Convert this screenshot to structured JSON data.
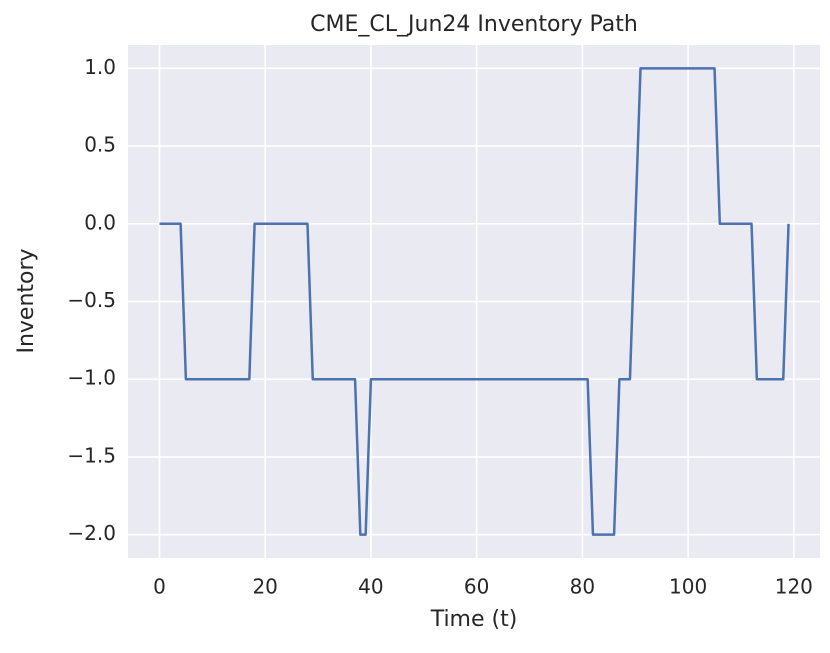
{
  "chart_data": {
    "type": "line",
    "title": "CME_CL_Jun24 Inventory Path",
    "xlabel": "Time (t)",
    "ylabel": "Inventory",
    "x": [
      0,
      1,
      2,
      3,
      4,
      5,
      6,
      7,
      8,
      9,
      10,
      11,
      12,
      13,
      14,
      15,
      16,
      17,
      18,
      19,
      20,
      21,
      22,
      23,
      24,
      25,
      26,
      27,
      28,
      29,
      30,
      31,
      32,
      33,
      34,
      35,
      36,
      37,
      38,
      39,
      40,
      41,
      42,
      43,
      44,
      45,
      46,
      47,
      48,
      49,
      50,
      51,
      52,
      53,
      54,
      55,
      56,
      57,
      58,
      59,
      60,
      61,
      62,
      63,
      64,
      65,
      66,
      67,
      68,
      69,
      70,
      71,
      72,
      73,
      74,
      75,
      76,
      77,
      78,
      79,
      80,
      81,
      82,
      83,
      84,
      85,
      86,
      87,
      88,
      89,
      90,
      91,
      92,
      93,
      94,
      95,
      96,
      97,
      98,
      99,
      100,
      101,
      102,
      103,
      104,
      105,
      106,
      107,
      108,
      109,
      110,
      111,
      112,
      113,
      114,
      115,
      116,
      117,
      118,
      119
    ],
    "values": [
      0,
      0,
      0,
      0,
      0,
      -1,
      -1,
      -1,
      -1,
      -1,
      -1,
      -1,
      -1,
      -1,
      -1,
      -1,
      -1,
      -1,
      0,
      0,
      0,
      0,
      0,
      0,
      0,
      0,
      0,
      0,
      0,
      -1,
      -1,
      -1,
      -1,
      -1,
      -1,
      -1,
      -1,
      -1,
      -2,
      -2,
      -1,
      -1,
      -1,
      -1,
      -1,
      -1,
      -1,
      -1,
      -1,
      -1,
      -1,
      -1,
      -1,
      -1,
      -1,
      -1,
      -1,
      -1,
      -1,
      -1,
      -1,
      -1,
      -1,
      -1,
      -1,
      -1,
      -1,
      -1,
      -1,
      -1,
      -1,
      -1,
      -1,
      -1,
      -1,
      -1,
      -1,
      -1,
      -1,
      -1,
      -1,
      -1,
      -2,
      -2,
      -2,
      -2,
      -2,
      -1,
      -1,
      -1,
      0,
      1,
      1,
      1,
      1,
      1,
      1,
      1,
      1,
      1,
      1,
      1,
      1,
      1,
      1,
      1,
      0,
      0,
      0,
      0,
      0,
      0,
      0,
      -1,
      -1,
      -1,
      -1,
      -1,
      -1,
      0
    ],
    "color": "#4c72b0",
    "xlim": [
      -5.95,
      124.95
    ],
    "xticks": [
      0,
      20,
      40,
      60,
      80,
      100,
      120
    ],
    "ylim": [
      -2.15,
      1.15
    ],
    "yticks": [
      {
        "value": -2.0,
        "label": "−2.0"
      },
      {
        "value": -1.5,
        "label": "−1.5"
      },
      {
        "value": -1.0,
        "label": "−1.0"
      },
      {
        "value": -0.5,
        "label": "−0.5"
      },
      {
        "value": 0.0,
        "label": "0.0"
      },
      {
        "value": 0.5,
        "label": "0.5"
      },
      {
        "value": 1.0,
        "label": "1.0"
      }
    ],
    "grid": true
  }
}
